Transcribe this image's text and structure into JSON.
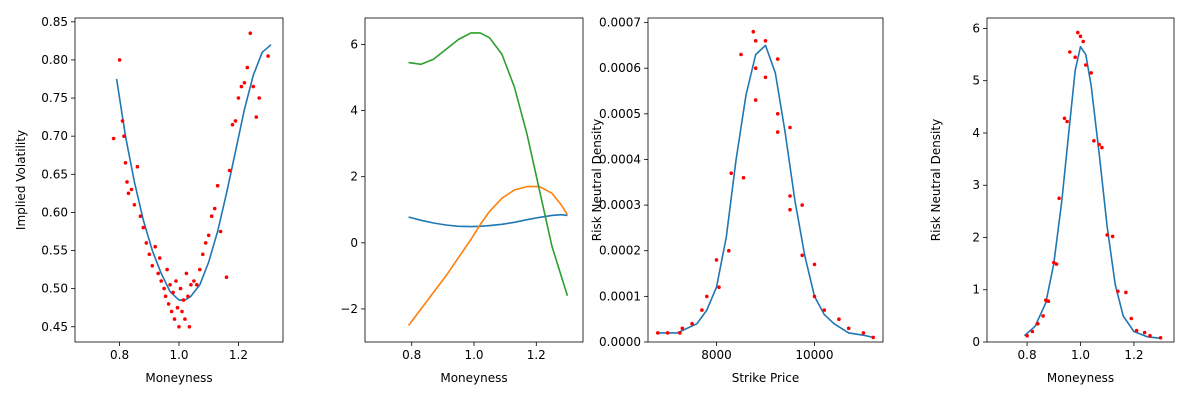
{
  "colors": {
    "fit_line": "#1f77b4",
    "points": "#ff0000",
    "series_orange": "#ff7f0e",
    "series_green": "#2ca02c"
  },
  "chart_data": [
    {
      "type": "scatter",
      "xlabel": "Moneyness",
      "ylabel": "Implied Volatility",
      "xlim": [
        0.65,
        1.35
      ],
      "ylim": [
        0.43,
        0.855
      ],
      "xticks": [
        0.8,
        1.0,
        1.2
      ],
      "xtick_labels": [
        "0.8",
        "1.0",
        "1.2"
      ],
      "yticks": [
        0.45,
        0.5,
        0.55,
        0.6,
        0.65,
        0.7,
        0.75,
        0.8,
        0.85
      ],
      "ytick_labels": [
        "0.45",
        "0.50",
        "0.55",
        "0.60",
        "0.65",
        "0.70",
        "0.75",
        "0.80",
        "0.85"
      ],
      "fit": {
        "x": [
          0.79,
          0.82,
          0.85,
          0.88,
          0.91,
          0.94,
          0.97,
          1.0,
          1.02,
          1.04,
          1.07,
          1.1,
          1.13,
          1.16,
          1.19,
          1.22,
          1.25,
          1.28,
          1.31
        ],
        "y": [
          0.775,
          0.7,
          0.64,
          0.59,
          0.55,
          0.52,
          0.496,
          0.485,
          0.485,
          0.49,
          0.505,
          0.535,
          0.575,
          0.625,
          0.68,
          0.735,
          0.78,
          0.81,
          0.82
        ]
      },
      "points": {
        "x": [
          0.78,
          0.8,
          0.81,
          0.815,
          0.82,
          0.825,
          0.83,
          0.84,
          0.85,
          0.86,
          0.87,
          0.88,
          0.89,
          0.9,
          0.91,
          0.92,
          0.93,
          0.935,
          0.94,
          0.95,
          0.955,
          0.96,
          0.965,
          0.97,
          0.975,
          0.98,
          0.985,
          0.99,
          0.995,
          1.0,
          1.005,
          1.01,
          1.015,
          1.02,
          1.025,
          1.03,
          1.035,
          1.04,
          1.05,
          1.06,
          1.07,
          1.08,
          1.09,
          1.1,
          1.11,
          1.12,
          1.13,
          1.14,
          1.16,
          1.17,
          1.18,
          1.19,
          1.2,
          1.21,
          1.22,
          1.23,
          1.24,
          1.25,
          1.26,
          1.27,
          1.3
        ],
        "y": [
          0.697,
          0.8,
          0.72,
          0.7,
          0.665,
          0.64,
          0.625,
          0.63,
          0.61,
          0.66,
          0.595,
          0.58,
          0.56,
          0.545,
          0.53,
          0.555,
          0.52,
          0.54,
          0.51,
          0.5,
          0.49,
          0.525,
          0.48,
          0.505,
          0.47,
          0.495,
          0.46,
          0.51,
          0.475,
          0.45,
          0.5,
          0.47,
          0.485,
          0.46,
          0.52,
          0.49,
          0.45,
          0.505,
          0.51,
          0.505,
          0.525,
          0.545,
          0.56,
          0.57,
          0.595,
          0.605,
          0.635,
          0.575,
          0.515,
          0.655,
          0.715,
          0.72,
          0.75,
          0.765,
          0.77,
          0.79,
          0.835,
          0.765,
          0.725,
          0.75,
          0.805
        ]
      }
    },
    {
      "type": "line",
      "xlabel": "Moneyness",
      "ylabel": "",
      "xlim": [
        0.65,
        1.35
      ],
      "ylim": [
        -3.0,
        6.8
      ],
      "xticks": [
        0.8,
        1.0,
        1.2
      ],
      "xtick_labels": [
        "0.8",
        "1.0",
        "1.2"
      ],
      "yticks": [
        -2,
        0,
        2,
        4,
        6
      ],
      "ytick_labels": [
        "−2",
        "0",
        "2",
        "4",
        "6"
      ],
      "x": [
        0.79,
        0.83,
        0.87,
        0.91,
        0.95,
        0.99,
        1.02,
        1.05,
        1.09,
        1.13,
        1.17,
        1.21,
        1.25,
        1.28,
        1.3
      ],
      "series": [
        {
          "color_key": "fit_line",
          "values": [
            0.78,
            0.68,
            0.6,
            0.54,
            0.5,
            0.49,
            0.5,
            0.52,
            0.56,
            0.62,
            0.7,
            0.77,
            0.83,
            0.85,
            0.83
          ]
        },
        {
          "color_key": "series_orange",
          "values": [
            -2.5,
            -2.0,
            -1.5,
            -1.0,
            -0.45,
            0.1,
            0.55,
            0.95,
            1.35,
            1.6,
            1.7,
            1.7,
            1.5,
            1.15,
            0.85
          ]
        },
        {
          "color_key": "series_green",
          "values": [
            5.45,
            5.4,
            5.55,
            5.85,
            6.15,
            6.35,
            6.35,
            6.2,
            5.7,
            4.7,
            3.3,
            1.6,
            -0.1,
            -1.0,
            -1.6
          ]
        }
      ]
    },
    {
      "type": "scatter",
      "xlabel": "Strike Price",
      "ylabel": "Risk Neutral Density",
      "xlim": [
        6600,
        11400
      ],
      "ylim": [
        0,
        0.00071
      ],
      "xticks": [
        8000,
        10000
      ],
      "xtick_labels": [
        "8000",
        "10000"
      ],
      "yticks": [
        0,
        0.0001,
        0.0002,
        0.0003,
        0.0004,
        0.0005,
        0.0006,
        0.0007
      ],
      "ytick_labels": [
        "0.0000",
        "0.0001",
        "0.0002",
        "0.0003",
        "0.0004",
        "0.0005",
        "0.0006",
        "0.0007"
      ],
      "fit": {
        "x": [
          6800,
          7200,
          7600,
          7800,
          8000,
          8200,
          8400,
          8600,
          8800,
          9000,
          9200,
          9400,
          9600,
          9800,
          10000,
          10200,
          10400,
          10700,
          11000,
          11200
        ],
        "y": [
          2e-05,
          2e-05,
          4e-05,
          7e-05,
          0.00012,
          0.00023,
          0.0004,
          0.00054,
          0.00063,
          0.00065,
          0.00059,
          0.00046,
          0.00031,
          0.00019,
          0.0001,
          6e-05,
          4e-05,
          2e-05,
          1.5e-05,
          1e-05
        ]
      },
      "points": {
        "x": [
          6800,
          7000,
          7250,
          7300,
          7500,
          7700,
          7800,
          8000,
          8050,
          8250,
          8300,
          8500,
          8550,
          8750,
          8800,
          8800,
          8800,
          9000,
          9000,
          9250,
          9250,
          9250,
          9500,
          9500,
          9500,
          9750,
          9750,
          10000,
          10000,
          10200,
          10500,
          10700,
          11000,
          11200
        ],
        "y": [
          2e-05,
          2e-05,
          2e-05,
          3e-05,
          4e-05,
          7e-05,
          0.0001,
          0.00018,
          0.00012,
          0.0002,
          0.00037,
          0.00063,
          0.00036,
          0.00068,
          0.00053,
          0.0006,
          0.00066,
          0.00066,
          0.00058,
          0.00062,
          0.00046,
          0.0005,
          0.00047,
          0.00032,
          0.00029,
          0.0003,
          0.00019,
          0.00017,
          0.0001,
          7e-05,
          5e-05,
          3e-05,
          2e-05,
          1e-05
        ]
      }
    },
    {
      "type": "scatter",
      "xlabel": "Moneyness",
      "ylabel": "Risk Neutral Density",
      "xlim": [
        0.65,
        1.35
      ],
      "ylim": [
        0,
        6.2
      ],
      "xticks": [
        0.8,
        1.0,
        1.2
      ],
      "xtick_labels": [
        "0.8",
        "1.0",
        "1.2"
      ],
      "yticks": [
        0,
        1,
        2,
        3,
        4,
        5,
        6
      ],
      "ytick_labels": [
        "0",
        "1",
        "2",
        "3",
        "4",
        "5",
        "6"
      ],
      "fit": {
        "x": [
          0.79,
          0.83,
          0.87,
          0.9,
          0.93,
          0.96,
          0.98,
          1.0,
          1.02,
          1.04,
          1.07,
          1.1,
          1.13,
          1.16,
          1.2,
          1.25,
          1.3
        ],
        "y": [
          0.12,
          0.3,
          0.75,
          1.5,
          2.7,
          4.2,
          5.2,
          5.65,
          5.5,
          4.9,
          3.6,
          2.2,
          1.1,
          0.5,
          0.2,
          0.1,
          0.07
        ]
      },
      "points": {
        "x": [
          0.8,
          0.82,
          0.84,
          0.86,
          0.87,
          0.88,
          0.9,
          0.91,
          0.92,
          0.94,
          0.95,
          0.96,
          0.98,
          0.99,
          1.0,
          1.01,
          1.02,
          1.04,
          1.05,
          1.07,
          1.08,
          1.1,
          1.12,
          1.14,
          1.17,
          1.19,
          1.21,
          1.24,
          1.26,
          1.3
        ],
        "y": [
          0.12,
          0.2,
          0.35,
          0.5,
          0.8,
          0.78,
          1.52,
          1.49,
          2.75,
          4.28,
          4.22,
          5.55,
          5.45,
          5.92,
          5.85,
          5.75,
          5.3,
          5.15,
          3.85,
          3.78,
          3.72,
          2.05,
          2.02,
          0.97,
          0.95,
          0.45,
          0.22,
          0.18,
          0.12,
          0.08
        ]
      }
    }
  ]
}
